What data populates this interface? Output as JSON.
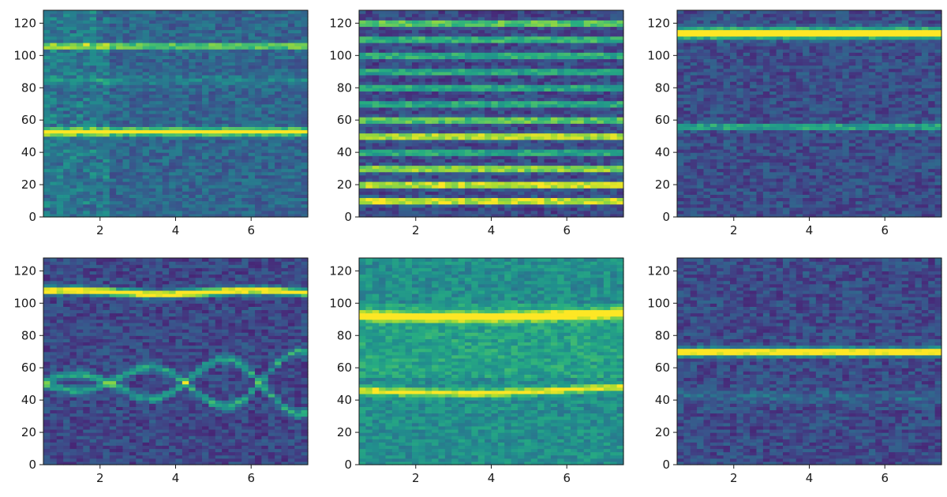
{
  "chart_data": [
    {
      "type": "heatmap",
      "title": "",
      "xlabel": "",
      "ylabel": "",
      "xlim": [
        0.5,
        7.5
      ],
      "ylim": [
        0,
        128
      ],
      "x_ticks": [
        "2",
        "4",
        "6"
      ],
      "y_ticks": [
        "0",
        "20",
        "40",
        "60",
        "80",
        "100",
        "120"
      ],
      "colormap": "viridis",
      "background_level": 0.33,
      "lines": [
        {
          "y": 106,
          "strength": 0.58,
          "width": 1.6
        },
        {
          "y": 53,
          "strength": 0.95,
          "width": 2.0
        },
        {
          "y": 85,
          "strength": 0.12,
          "width": 2.5
        }
      ],
      "noise_hotspot": {
        "x": [
          0.5,
          2.2
        ],
        "level": 0.15
      }
    },
    {
      "type": "heatmap",
      "title": "",
      "xlabel": "",
      "ylabel": "",
      "xlim": [
        0.5,
        7.5
      ],
      "ylim": [
        0,
        128
      ],
      "x_ticks": [
        "2",
        "4",
        "6"
      ],
      "y_ticks": [
        "0",
        "20",
        "40",
        "60",
        "80",
        "100",
        "120"
      ],
      "colormap": "viridis",
      "background_level": 0.22,
      "lines": [
        {
          "y": 10,
          "strength": 0.95,
          "width": 1.8
        },
        {
          "y": 20,
          "strength": 0.92,
          "width": 1.8
        },
        {
          "y": 30,
          "strength": 0.82,
          "width": 1.8
        },
        {
          "y": 40,
          "strength": 0.55,
          "width": 1.6
        },
        {
          "y": 50,
          "strength": 0.88,
          "width": 1.8
        },
        {
          "y": 60,
          "strength": 0.72,
          "width": 1.7
        },
        {
          "y": 70,
          "strength": 0.55,
          "width": 1.6
        },
        {
          "y": 80,
          "strength": 0.55,
          "width": 1.6
        },
        {
          "y": 90,
          "strength": 0.55,
          "width": 1.6
        },
        {
          "y": 100,
          "strength": 0.58,
          "width": 1.6
        },
        {
          "y": 110,
          "strength": 0.62,
          "width": 1.6
        },
        {
          "y": 120,
          "strength": 0.75,
          "width": 1.6
        }
      ]
    },
    {
      "type": "heatmap",
      "title": "",
      "xlabel": "",
      "ylabel": "",
      "xlim": [
        0.5,
        7.5
      ],
      "ylim": [
        0,
        128
      ],
      "x_ticks": [
        "2",
        "4",
        "6"
      ],
      "y_ticks": [
        "0",
        "20",
        "40",
        "60",
        "80",
        "100",
        "120"
      ],
      "colormap": "viridis",
      "background_level": 0.24,
      "lines": [
        {
          "y": 114,
          "strength": 1.0,
          "width": 3.0
        },
        {
          "y": 56,
          "strength": 0.45,
          "width": 1.8
        }
      ]
    },
    {
      "type": "heatmap",
      "title": "",
      "xlabel": "",
      "ylabel": "",
      "xlim": [
        0.5,
        7.5
      ],
      "ylim": [
        0,
        128
      ],
      "x_ticks": [
        "2",
        "4",
        "6"
      ],
      "y_ticks": [
        "0",
        "20",
        "40",
        "60",
        "80",
        "100",
        "120"
      ],
      "colormap": "viridis",
      "background_level": 0.22,
      "lines": [
        {
          "y": 107,
          "strength": 0.95,
          "width": 2.2,
          "wobble": 1.2
        },
        {
          "y_center": 51,
          "strength": 0.38,
          "width": 2.5,
          "oscillate": {
            "amp_start": 3,
            "amp_end": 20,
            "period": 2.0
          }
        },
        {
          "y_center": 51,
          "strength": 0.38,
          "width": 2.5,
          "oscillate": {
            "amp_start": -3,
            "amp_end": -20,
            "period": 2.0
          }
        }
      ]
    },
    {
      "type": "heatmap",
      "title": "",
      "xlabel": "",
      "ylabel": "",
      "xlim": [
        0.5,
        7.5
      ],
      "ylim": [
        0,
        128
      ],
      "x_ticks": [
        "2",
        "4",
        "6"
      ],
      "y_ticks": [
        "0",
        "20",
        "40",
        "60",
        "80",
        "100",
        "120"
      ],
      "colormap": "viridis",
      "background_level": 0.5,
      "lines": [
        {
          "y": 93,
          "strength": 0.82,
          "width": 2.6,
          "drift": -1.5
        },
        {
          "y": 47,
          "strength": 0.55,
          "width": 2.2,
          "drift": -2.5
        }
      ],
      "bright_band": {
        "y": [
          55,
          100
        ],
        "level": 0.08
      }
    },
    {
      "type": "heatmap",
      "title": "",
      "xlabel": "",
      "ylabel": "",
      "xlim": [
        0.5,
        7.5
      ],
      "ylim": [
        0,
        128
      ],
      "x_ticks": [
        "2",
        "4",
        "6"
      ],
      "y_ticks": [
        "0",
        "20",
        "40",
        "60",
        "80",
        "100",
        "120"
      ],
      "colormap": "viridis",
      "background_level": 0.23,
      "lines": [
        {
          "y": 70,
          "strength": 0.95,
          "width": 2.4
        },
        {
          "y": 42,
          "strength": 0.12,
          "width": 4.0
        }
      ]
    }
  ]
}
